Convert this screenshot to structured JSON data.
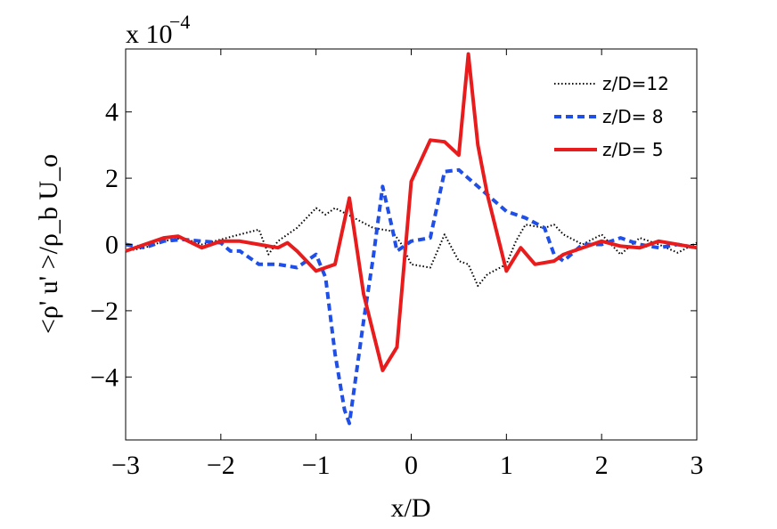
{
  "chart_data": {
    "type": "line",
    "xlabel": "x/D",
    "ylabel": "<ρ' u' >/ρ_b U_o",
    "y_multiplier_label": "x 10",
    "y_multiplier_exponent": "−4",
    "xlim": [
      -3,
      3
    ],
    "ylim": [
      -5.9,
      5.9
    ],
    "xticks": [
      -3,
      -2,
      -1,
      0,
      1,
      2,
      3
    ],
    "yticks": [
      -4,
      -2,
      0,
      2,
      4
    ],
    "xtick_labels": [
      "−3",
      "−2",
      "−1",
      "0",
      "1",
      "2",
      "3"
    ],
    "ytick_labels": [
      "−4",
      "−2",
      "0",
      "2",
      "4"
    ],
    "grid": false,
    "legend_position": "top-right",
    "series": [
      {
        "name": "z/D=12",
        "color": "#000000",
        "style": "dotted",
        "x": [
          -3.0,
          -2.8,
          -2.6,
          -2.4,
          -2.2,
          -2.0,
          -1.8,
          -1.6,
          -1.5,
          -1.4,
          -1.2,
          -1.0,
          -0.9,
          -0.8,
          -0.6,
          -0.4,
          -0.2,
          -0.1,
          0.0,
          0.2,
          0.35,
          0.5,
          0.6,
          0.7,
          0.8,
          1.0,
          1.1,
          1.2,
          1.4,
          1.5,
          1.6,
          1.8,
          2.0,
          2.2,
          2.4,
          2.6,
          2.8,
          3.0
        ],
        "y": [
          -0.2,
          -0.1,
          0.1,
          0.2,
          0.0,
          0.15,
          0.3,
          0.45,
          -0.3,
          0.1,
          0.5,
          1.1,
          0.9,
          1.1,
          0.8,
          0.5,
          0.4,
          0.0,
          -0.6,
          -0.7,
          0.3,
          -0.5,
          -0.6,
          -1.25,
          -0.9,
          -0.6,
          0.1,
          0.6,
          0.5,
          0.6,
          0.3,
          0.0,
          0.3,
          -0.3,
          0.2,
          0.0,
          -0.25,
          0.05
        ]
      },
      {
        "name": "z/D= 8",
        "color": "#1f4fe6",
        "style": "dashed",
        "x": [
          -3.0,
          -2.8,
          -2.6,
          -2.4,
          -2.2,
          -2.0,
          -1.9,
          -1.8,
          -1.6,
          -1.4,
          -1.2,
          -1.1,
          -1.0,
          -0.9,
          -0.8,
          -0.7,
          -0.65,
          -0.5,
          -0.4,
          -0.3,
          -0.2,
          -0.15,
          0.0,
          0.2,
          0.35,
          0.5,
          0.6,
          0.8,
          1.0,
          1.2,
          1.4,
          1.5,
          1.6,
          1.8,
          2.0,
          2.2,
          2.4,
          2.6,
          2.8,
          3.0
        ],
        "y": [
          0.0,
          -0.1,
          0.1,
          0.15,
          0.1,
          0.05,
          -0.2,
          -0.2,
          -0.6,
          -0.6,
          -0.7,
          -0.5,
          -0.3,
          -1.0,
          -3.3,
          -5.0,
          -5.4,
          -2.3,
          -0.4,
          1.75,
          0.5,
          -0.2,
          0.1,
          0.2,
          2.2,
          2.25,
          2.0,
          1.5,
          1.0,
          0.8,
          0.5,
          -0.3,
          -0.5,
          0.0,
          0.0,
          0.2,
          0.0,
          -0.1,
          0.0,
          -0.1
        ]
      },
      {
        "name": "z/D= 5",
        "color": "#e81c1c",
        "style": "solid",
        "x": [
          -3.0,
          -2.8,
          -2.6,
          -2.45,
          -2.2,
          -2.0,
          -1.8,
          -1.6,
          -1.4,
          -1.3,
          -1.2,
          -1.0,
          -0.9,
          -0.8,
          -0.65,
          -0.5,
          -0.3,
          -0.15,
          0.0,
          0.2,
          0.35,
          0.5,
          0.6,
          0.7,
          0.8,
          1.0,
          1.15,
          1.3,
          1.5,
          1.6,
          1.8,
          2.0,
          2.2,
          2.4,
          2.6,
          2.8,
          3.0
        ],
        "y": [
          -0.2,
          0.0,
          0.2,
          0.25,
          -0.1,
          0.1,
          0.1,
          0.0,
          -0.1,
          0.05,
          -0.2,
          -0.8,
          -0.7,
          -0.6,
          1.4,
          -1.5,
          -3.8,
          -3.1,
          1.9,
          3.15,
          3.1,
          2.7,
          5.75,
          3.0,
          1.5,
          -0.8,
          -0.1,
          -0.6,
          -0.5,
          -0.3,
          -0.1,
          0.1,
          -0.05,
          -0.1,
          0.1,
          0.0,
          -0.1
        ]
      }
    ]
  }
}
